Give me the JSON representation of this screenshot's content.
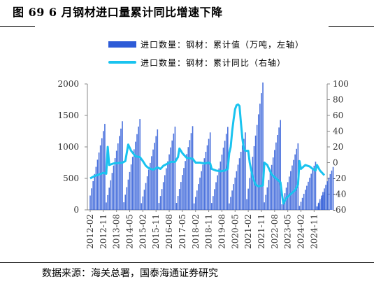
{
  "title": "图 69 6 月钢材进口量累计同比增速下降",
  "source": "数据来源：海关总署，国泰海通证券研究",
  "legend": {
    "bar_label": "进口数量：钢材：累计值（万吨，左轴）",
    "line_label": "进口数量：钢材：累计同比（右轴）"
  },
  "colors": {
    "bar": "#2d5bd7",
    "line": "#19c3ef",
    "axis": "#888888"
  },
  "chart_data": {
    "type": "bar",
    "left_axis": {
      "min": 0,
      "max": 2000,
      "ticks": [
        0,
        500,
        1000,
        1500,
        2000
      ]
    },
    "right_axis": {
      "min": -60,
      "max": 100,
      "ticks": [
        -60,
        -40,
        -20,
        0,
        20,
        40,
        60,
        80,
        100
      ]
    },
    "x_tick_labels": [
      "2012-02",
      "2012-11",
      "2013-08",
      "2014-05",
      "2015-02",
      "2015-11",
      "2016-08",
      "2017-05",
      "2018-02",
      "2018-11",
      "2019-08",
      "2020-05",
      "2021-02",
      "2021-11",
      "2022-08",
      "2023-05",
      "2024-02",
      "2024-11"
    ],
    "x_range": [
      "2012-02",
      "2025-06"
    ],
    "bar_year_end_values": [
      1366,
      1408,
      1443,
      1278,
      1322,
      1330,
      1230,
      1317,
      1230,
      2023,
      1427,
      1057,
      765,
      681
    ],
    "bar_2025_h1": 282,
    "line_points": [
      [
        "2012-02",
        -20
      ],
      [
        "2012-05",
        -17
      ],
      [
        "2012-08",
        -15
      ],
      [
        "2012-11",
        -13
      ],
      [
        "2013-01",
        -14
      ],
      [
        "2013-02",
        20
      ],
      [
        "2013-03",
        -3
      ],
      [
        "2013-06",
        -1
      ],
      [
        "2013-12",
        0
      ],
      [
        "2014-02",
        2
      ],
      [
        "2014-04",
        23
      ],
      [
        "2014-06",
        15
      ],
      [
        "2014-09",
        8
      ],
      [
        "2014-12",
        7
      ],
      [
        "2015-02",
        2
      ],
      [
        "2015-04",
        -4
      ],
      [
        "2015-06",
        -7
      ],
      [
        "2015-09",
        -9
      ],
      [
        "2015-12",
        -6
      ],
      [
        "2016-02",
        -8
      ],
      [
        "2016-04",
        -4
      ],
      [
        "2016-06",
        -2
      ],
      [
        "2016-09",
        1
      ],
      [
        "2016-12",
        1
      ],
      [
        "2017-02",
        7
      ],
      [
        "2017-03",
        18
      ],
      [
        "2017-05",
        12
      ],
      [
        "2017-08",
        6
      ],
      [
        "2017-12",
        5
      ],
      [
        "2018-02",
        0
      ],
      [
        "2018-05",
        0
      ],
      [
        "2018-08",
        -1
      ],
      [
        "2018-11",
        0
      ],
      [
        "2018-12",
        -1
      ],
      [
        "2019-01",
        -8
      ],
      [
        "2019-04",
        -10
      ],
      [
        "2019-07",
        -11
      ],
      [
        "2019-10",
        -10
      ],
      [
        "2019-12",
        -8
      ],
      [
        "2020-01",
        12
      ],
      [
        "2020-02",
        20
      ],
      [
        "2020-03",
        40
      ],
      [
        "2020-04",
        55
      ],
      [
        "2020-05",
        68
      ],
      [
        "2020-06",
        73
      ],
      [
        "2020-07",
        74
      ],
      [
        "2020-08",
        72
      ],
      [
        "2020-09",
        50
      ],
      [
        "2020-10",
        30
      ],
      [
        "2020-11",
        18
      ],
      [
        "2020-12",
        15
      ],
      [
        "2021-02",
        15
      ],
      [
        "2021-03",
        0
      ],
      [
        "2021-05",
        -18
      ],
      [
        "2021-07",
        -28
      ],
      [
        "2021-09",
        -30
      ],
      [
        "2021-12",
        -29
      ],
      [
        "2022-01",
        0
      ],
      [
        "2022-03",
        -3
      ],
      [
        "2022-06",
        -15
      ],
      [
        "2022-09",
        -20
      ],
      [
        "2022-12",
        -25
      ],
      [
        "2023-01",
        -40
      ],
      [
        "2023-02",
        -52
      ],
      [
        "2023-04",
        -45
      ],
      [
        "2023-07",
        -40
      ],
      [
        "2023-10",
        -35
      ],
      [
        "2023-12",
        -28
      ],
      [
        "2024-01",
        2
      ],
      [
        "2024-02",
        -8
      ],
      [
        "2024-05",
        -3
      ],
      [
        "2024-08",
        -5
      ],
      [
        "2024-10",
        -8
      ],
      [
        "2024-12",
        -10
      ],
      [
        "2025-01",
        -3
      ],
      [
        "2025-03",
        -10
      ],
      [
        "2025-06",
        -16
      ]
    ]
  }
}
